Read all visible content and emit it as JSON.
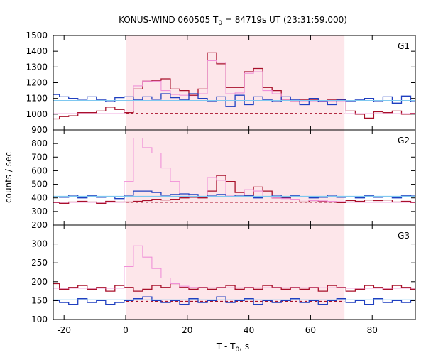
{
  "title": "KONUS-WIND 060505 T",
  "title_sub": "0",
  "title_rest": " = 84719s UT (23:31:59.000)",
  "xlabel": "T - T",
  "xlabel_sub": "0",
  "xlabel_rest": ", s",
  "ylabel": "counts / sec",
  "colors": {
    "dark_red": "#a8102a",
    "pink": "#f090d8",
    "blue": "#1f3fc0",
    "light_blue": "#7ec8f0",
    "shade": "#fde6ea"
  },
  "chart_data": {
    "type": "line",
    "xlim": [
      -23.5,
      94
    ],
    "x_ticks": [
      -20,
      0,
      20,
      40,
      60,
      80
    ],
    "shade_interval": [
      0,
      71
    ],
    "panels": [
      {
        "label": "G1",
        "ylim": [
          900,
          1500
        ],
        "y_ticks": [
          900,
          1000,
          1100,
          1200,
          1300,
          1400,
          1500
        ],
        "background_level": 1005,
        "series": [
          {
            "name": "G1 observed",
            "color": "dark_red",
            "edges": [
              -23.5,
              -21.5,
              -18.5,
              -15.5,
              -12.5,
              -9.5,
              -6.5,
              -3.5,
              -0.5,
              2.5,
              5.5,
              8.5,
              11.5,
              14.5,
              17.5,
              20.5,
              23.5,
              26.5,
              29.5,
              32.5,
              35.5,
              38.5,
              41.5,
              44.5,
              47.5,
              50.5,
              53.5,
              56.5,
              59.5,
              62.5,
              65.5,
              68.5,
              71.5,
              74.5,
              77.5,
              80.5,
              83.5,
              86.5,
              89.5,
              92.5,
              94
            ],
            "values": [
              970,
              985,
              990,
              1010,
              1010,
              1020,
              1045,
              1030,
              1010,
              1160,
              1210,
              1215,
              1225,
              1160,
              1150,
              1120,
              1160,
              1390,
              1320,
              1170,
              1170,
              1270,
              1290,
              1170,
              1150,
              1090,
              1085,
              1090,
              1090,
              1085,
              1090,
              1095,
              1020,
              1000,
              975,
              1015,
              1010,
              1020,
              1000,
              1005
            ]
          },
          {
            "name": "G1 model",
            "color": "pink",
            "edges": [
              -23.5,
              -0.5,
              2.5,
              5.5,
              8.5,
              11.5,
              14.5,
              17.5,
              20.5,
              23.5,
              26.5,
              29.5,
              32.5,
              35.5,
              38.5,
              41.5,
              44.5,
              47.5,
              50.5,
              53.5,
              56.5,
              59.5,
              62.5,
              65.5,
              68.5,
              71.5,
              94
            ],
            "values": [
              1003,
              1020,
              1180,
              1210,
              1210,
              1150,
              1125,
              1120,
              1110,
              1130,
              1340,
              1330,
              1130,
              1135,
              1260,
              1270,
              1150,
              1130,
              1090,
              1085,
              1085,
              1085,
              1085,
              1085,
              1080,
              1003
            ]
          },
          {
            "name": "G1 background",
            "color": "blue",
            "edges": [
              -23.5,
              -21.5,
              -18.5,
              -15.5,
              -12.5,
              -9.5,
              -6.5,
              -3.5,
              -0.5,
              2.5,
              5.5,
              8.5,
              11.5,
              14.5,
              17.5,
              20.5,
              23.5,
              26.5,
              29.5,
              32.5,
              35.5,
              38.5,
              41.5,
              44.5,
              47.5,
              50.5,
              53.5,
              56.5,
              59.5,
              62.5,
              65.5,
              68.5,
              71.5,
              74.5,
              77.5,
              80.5,
              83.5,
              86.5,
              89.5,
              92.5,
              94
            ],
            "values": [
              1125,
              1110,
              1100,
              1095,
              1110,
              1090,
              1080,
              1105,
              1110,
              1090,
              1110,
              1095,
              1130,
              1105,
              1090,
              1130,
              1100,
              1085,
              1110,
              1050,
              1120,
              1060,
              1110,
              1090,
              1080,
              1110,
              1090,
              1060,
              1100,
              1080,
              1060,
              1090,
              1085,
              1090,
              1100,
              1080,
              1110,
              1070,
              1115,
              1080
            ]
          },
          {
            "name": "G1 background fit",
            "color": "light_blue",
            "edges": [
              -23.5,
              94
            ],
            "values": [
              1087
            ]
          }
        ]
      },
      {
        "label": "G2",
        "ylim": [
          200,
          900
        ],
        "y_ticks": [
          200,
          300,
          400,
          500,
          600,
          700,
          800,
          900
        ],
        "background_level": 368,
        "series": [
          {
            "name": "G2 observed",
            "color": "dark_red",
            "edges": [
              -23.5,
              -21.5,
              -18.5,
              -15.5,
              -12.5,
              -9.5,
              -6.5,
              -3.5,
              -0.5,
              2.5,
              5.5,
              8.5,
              11.5,
              14.5,
              17.5,
              20.5,
              23.5,
              26.5,
              29.5,
              32.5,
              35.5,
              38.5,
              41.5,
              44.5,
              47.5,
              50.5,
              53.5,
              56.5,
              59.5,
              62.5,
              65.5,
              68.5,
              71.5,
              74.5,
              77.5,
              80.5,
              83.5,
              86.5,
              89.5,
              92.5,
              94
            ],
            "values": [
              365,
              360,
              370,
              375,
              370,
              360,
              375,
              370,
              370,
              375,
              380,
              390,
              385,
              390,
              400,
              405,
              400,
              450,
              565,
              520,
              440,
              420,
              480,
              450,
              400,
              400,
              390,
              370,
              380,
              375,
              370,
              365,
              380,
              375,
              385,
              380,
              385,
              370,
              375,
              365
            ]
          },
          {
            "name": "G2 model",
            "color": "pink",
            "edges": [
              -23.5,
              -0.5,
              2.5,
              5.5,
              8.5,
              11.5,
              14.5,
              17.5,
              20.5,
              23.5,
              26.5,
              29.5,
              32.5,
              35.5,
              38.5,
              41.5,
              44.5,
              47.5,
              50.5,
              53.5,
              56.5,
              59.5,
              62.5,
              65.5,
              68.5,
              71.5,
              94
            ],
            "values": [
              368,
              520,
              840,
              770,
              730,
              620,
              520,
              430,
              410,
              410,
              550,
              530,
              420,
              420,
              460,
              450,
              410,
              400,
              395,
              390,
              385,
              380,
              378,
              375,
              372,
              368
            ]
          },
          {
            "name": "G2 background",
            "color": "blue",
            "edges": [
              -23.5,
              -21.5,
              -18.5,
              -15.5,
              -12.5,
              -9.5,
              -6.5,
              -3.5,
              -0.5,
              2.5,
              5.5,
              8.5,
              11.5,
              14.5,
              17.5,
              20.5,
              23.5,
              26.5,
              29.5,
              32.5,
              35.5,
              38.5,
              41.5,
              44.5,
              47.5,
              50.5,
              53.5,
              56.5,
              59.5,
              62.5,
              65.5,
              68.5,
              71.5,
              74.5,
              77.5,
              80.5,
              83.5,
              86.5,
              89.5,
              92.5,
              94
            ],
            "values": [
              410,
              405,
              420,
              400,
              415,
              405,
              410,
              395,
              420,
              450,
              450,
              440,
              420,
              425,
              430,
              425,
              410,
              420,
              425,
              410,
              420,
              415,
              400,
              410,
              420,
              405,
              415,
              410,
              400,
              405,
              420,
              405,
              410,
              400,
              415,
              405,
              410,
              400,
              415,
              420
            ]
          },
          {
            "name": "G2 background fit",
            "color": "light_blue",
            "edges": [
              -23.5,
              94
            ],
            "values": [
              412
            ]
          }
        ]
      },
      {
        "label": "G3",
        "ylim": [
          100,
          350
        ],
        "y_ticks": [
          100,
          150,
          200,
          250,
          300
        ],
        "background_level": 148,
        "series": [
          {
            "name": "G3 observed",
            "color": "dark_red",
            "edges": [
              -23.5,
              -21.5,
              -18.5,
              -15.5,
              -12.5,
              -9.5,
              -6.5,
              -3.5,
              -0.5,
              2.5,
              5.5,
              8.5,
              11.5,
              14.5,
              17.5,
              20.5,
              23.5,
              26.5,
              29.5,
              32.5,
              35.5,
              38.5,
              41.5,
              44.5,
              47.5,
              50.5,
              53.5,
              56.5,
              59.5,
              62.5,
              65.5,
              68.5,
              71.5,
              74.5,
              77.5,
              80.5,
              83.5,
              86.5,
              89.5,
              92.5,
              94
            ],
            "values": [
              195,
              180,
              185,
              190,
              180,
              185,
              175,
              190,
              185,
              175,
              180,
              190,
              185,
              195,
              185,
              180,
              185,
              180,
              185,
              190,
              180,
              185,
              180,
              190,
              185,
              180,
              185,
              180,
              185,
              175,
              190,
              185,
              175,
              180,
              190,
              185,
              180,
              190,
              185,
              180
            ]
          },
          {
            "name": "G3 model",
            "color": "pink",
            "edges": [
              -23.5,
              -0.5,
              2.5,
              5.5,
              8.5,
              11.5,
              14.5,
              17.5,
              20.5,
              23.5,
              71.5,
              94
            ],
            "values": [
              183,
              240,
              295,
              265,
              235,
              210,
              195,
              188,
              185,
              184,
              183
            ]
          },
          {
            "name": "G3 background",
            "color": "blue",
            "edges": [
              -23.5,
              -21.5,
              -18.5,
              -15.5,
              -12.5,
              -9.5,
              -6.5,
              -3.5,
              -0.5,
              2.5,
              5.5,
              8.5,
              11.5,
              14.5,
              17.5,
              20.5,
              23.5,
              26.5,
              29.5,
              32.5,
              35.5,
              38.5,
              41.5,
              44.5,
              47.5,
              50.5,
              53.5,
              56.5,
              59.5,
              62.5,
              65.5,
              68.5,
              71.5,
              74.5,
              77.5,
              80.5,
              83.5,
              86.5,
              89.5,
              92.5,
              94
            ],
            "values": [
              150,
              145,
              140,
              155,
              145,
              150,
              140,
              145,
              150,
              155,
              160,
              150,
              145,
              150,
              140,
              155,
              145,
              150,
              160,
              145,
              150,
              155,
              140,
              150,
              145,
              150,
              155,
              145,
              150,
              140,
              150,
              155,
              145,
              150,
              140,
              155,
              145,
              150,
              145,
              150
            ]
          },
          {
            "name": "G3 background fit",
            "color": "light_blue",
            "edges": [
              -23.5,
              94
            ],
            "values": [
              152
            ]
          }
        ]
      }
    ]
  }
}
